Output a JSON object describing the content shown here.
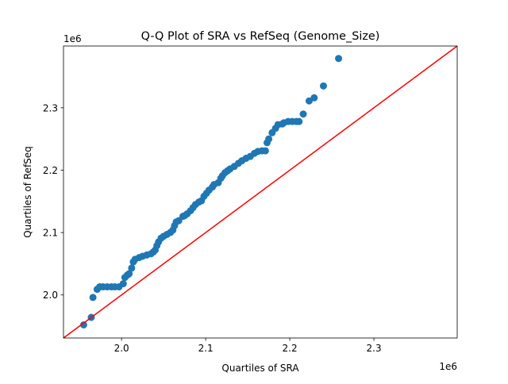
{
  "chart_data": {
    "type": "scatter",
    "title": "Q-Q Plot of SRA vs RefSeq (Genome_Size)",
    "xlabel": "Quartiles of SRA",
    "ylabel": "Quartiles of RefSeq",
    "x_offset_label": "1e6",
    "y_offset_label": "1e6",
    "xlim": [
      1.931,
      2.399
    ],
    "ylim": [
      1.931,
      2.399
    ],
    "xticks": [
      2.0,
      2.1,
      2.2,
      2.3
    ],
    "xtick_labels": [
      "2.0",
      "2.1",
      "2.2",
      "2.3"
    ],
    "yticks": [
      2.0,
      2.1,
      2.2,
      2.3
    ],
    "ytick_labels": [
      "2.0",
      "2.1",
      "2.2",
      "2.3"
    ],
    "grid": false,
    "point_color": "#1f77b4",
    "reference_line": {
      "type": "y=x",
      "color": "#ff0000"
    },
    "x": [
      1.955,
      1.964,
      1.966,
      1.971,
      1.974,
      1.978,
      1.983,
      1.988,
      1.992,
      1.997,
      2.002,
      2.004,
      2.007,
      2.009,
      2.012,
      2.014,
      2.016,
      2.021,
      2.025,
      2.03,
      2.035,
      2.038,
      2.04,
      2.042,
      2.044,
      2.047,
      2.05,
      2.054,
      2.058,
      2.061,
      2.063,
      2.065,
      2.068,
      2.073,
      2.075,
      2.078,
      2.082,
      2.085,
      2.088,
      2.092,
      2.095,
      2.098,
      2.101,
      2.104,
      2.108,
      2.11,
      2.115,
      2.118,
      2.12,
      2.123,
      2.126,
      2.129,
      2.134,
      2.139,
      2.143,
      2.148,
      2.153,
      2.158,
      2.162,
      2.167,
      2.171,
      2.173,
      2.175,
      2.179,
      2.183,
      2.186,
      2.191,
      2.193,
      2.198,
      2.203,
      2.208,
      2.211,
      2.216,
      2.223,
      2.229,
      2.24,
      2.258
    ],
    "y": [
      1.952,
      1.964,
      1.996,
      2.009,
      2.013,
      2.013,
      2.013,
      2.013,
      2.013,
      2.013,
      2.018,
      2.028,
      2.032,
      2.034,
      2.043,
      2.053,
      2.057,
      2.06,
      2.062,
      2.064,
      2.066,
      2.069,
      2.072,
      2.079,
      2.085,
      2.091,
      2.094,
      2.097,
      2.1,
      2.104,
      2.111,
      2.117,
      2.119,
      2.126,
      2.127,
      2.13,
      2.135,
      2.14,
      2.145,
      2.149,
      2.151,
      2.158,
      2.163,
      2.168,
      2.173,
      2.177,
      2.18,
      2.187,
      2.191,
      2.196,
      2.199,
      2.202,
      2.206,
      2.211,
      2.215,
      2.219,
      2.222,
      2.227,
      2.23,
      2.231,
      2.231,
      2.244,
      2.25,
      2.26,
      2.267,
      2.273,
      2.274,
      2.276,
      2.278,
      2.278,
      2.278,
      2.278,
      2.29,
      2.311,
      2.316,
      2.335,
      2.379
    ]
  }
}
